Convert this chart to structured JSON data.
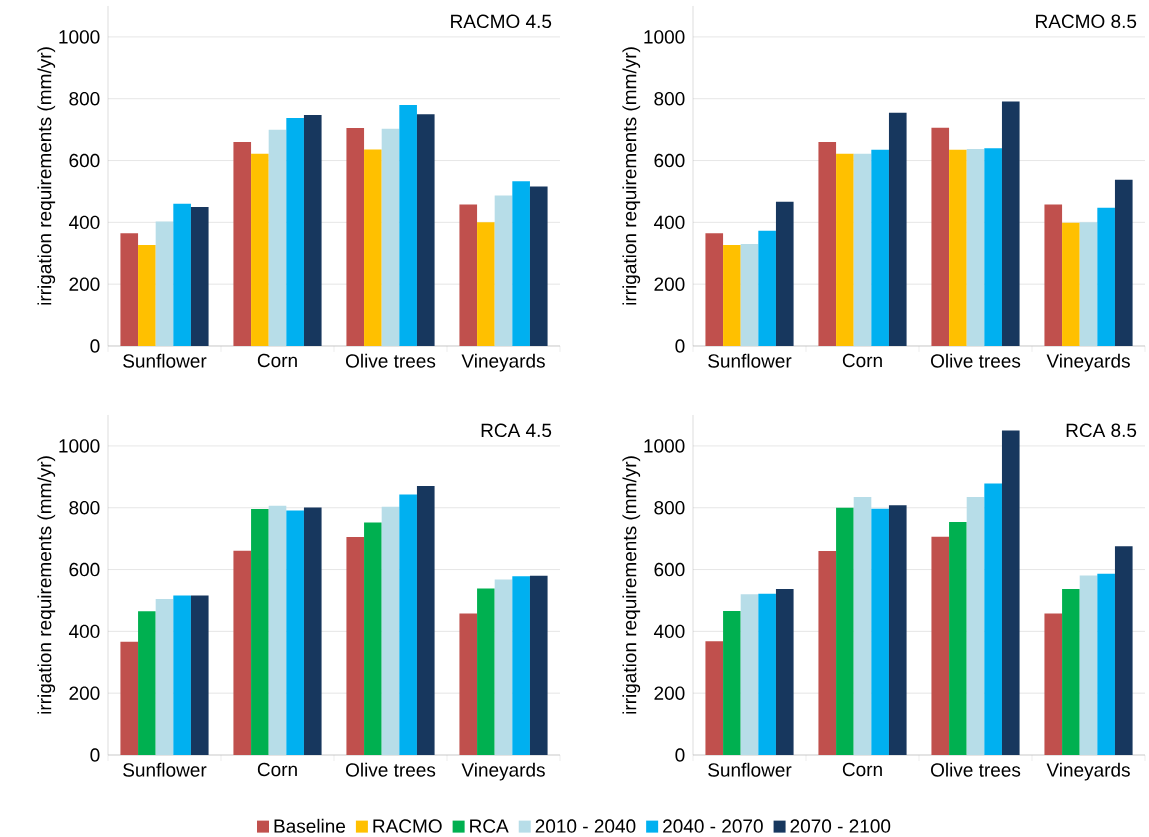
{
  "chart_data": [
    {
      "type": "bar",
      "title": "RACMO 4.5",
      "ylabel": "irrigation requirements (mm/yr)",
      "categories": [
        "Sunflower",
        "Corn",
        "Olive trees",
        "Vineyards"
      ],
      "ylim": [
        0,
        1100
      ],
      "yticks": [
        0,
        200,
        400,
        600,
        800,
        1000
      ],
      "grid": "y",
      "legend": "bottom",
      "series": [
        {
          "name": "Baseline",
          "color": "#c0504d",
          "values": [
            365,
            660,
            705,
            458
          ]
        },
        {
          "name": "RACMO",
          "color": "#ffc000",
          "values": [
            327,
            622,
            636,
            400
          ]
        },
        {
          "name": "2010 - 2040",
          "color": "#b7dde8",
          "values": [
            403,
            700,
            703,
            487
          ]
        },
        {
          "name": "2040 - 2070",
          "color": "#00b0f0",
          "values": [
            460,
            738,
            780,
            533
          ]
        },
        {
          "name": "2070 - 2100",
          "color": "#17375e",
          "values": [
            450,
            747,
            750,
            516
          ]
        }
      ]
    },
    {
      "type": "bar",
      "title": "RACMO 8.5",
      "ylabel": "irrigation requirements (mm/yr)",
      "categories": [
        "Sunflower",
        "Corn",
        "Olive trees",
        "Vineyards"
      ],
      "ylim": [
        0,
        1100
      ],
      "yticks": [
        0,
        200,
        400,
        600,
        800,
        1000
      ],
      "grid": "y",
      "series": [
        {
          "color": "#c0504d",
          "values": [
            365,
            660,
            706,
            458
          ]
        },
        {
          "color": "#ffc000",
          "values": [
            327,
            622,
            635,
            399
          ]
        },
        {
          "color": "#b7dde8",
          "values": [
            330,
            622,
            637,
            400
          ]
        },
        {
          "color": "#00b0f0",
          "values": [
            373,
            635,
            640,
            447
          ]
        },
        {
          "color": "#17375e",
          "values": [
            467,
            755,
            791,
            538
          ]
        }
      ]
    },
    {
      "type": "bar",
      "title": "RCA 4.5",
      "ylabel": "irrigation requirements (mm/yr)",
      "categories": [
        "Sunflower",
        "Corn",
        "Olive trees",
        "Vineyards"
      ],
      "ylim": [
        0,
        1100
      ],
      "yticks": [
        0,
        200,
        400,
        600,
        800,
        1000
      ],
      "grid": "y",
      "legend": "bottom",
      "series": [
        {
          "color": "#c0504d",
          "values": [
            366,
            661,
            705,
            458
          ]
        },
        {
          "name": "RCA",
          "color": "#00b050",
          "values": [
            465,
            796,
            752,
            539
          ]
        },
        {
          "color": "#b7dde8",
          "values": [
            505,
            806,
            803,
            568
          ]
        },
        {
          "color": "#00b0f0",
          "values": [
            516,
            791,
            843,
            578
          ]
        },
        {
          "color": "#17375e",
          "values": [
            516,
            801,
            870,
            580
          ]
        }
      ]
    },
    {
      "type": "bar",
      "title": "RCA 8.5",
      "ylabel": "irrigation requirements (mm/yr)",
      "categories": [
        "Sunflower",
        "Corn",
        "Olive trees",
        "Vineyards"
      ],
      "ylim": [
        0,
        1100
      ],
      "yticks": [
        0,
        200,
        400,
        600,
        800,
        1000
      ],
      "grid": "y",
      "series": [
        {
          "color": "#c0504d",
          "values": [
            368,
            660,
            706,
            458
          ]
        },
        {
          "color": "#00b050",
          "values": [
            466,
            800,
            754,
            537
          ]
        },
        {
          "color": "#b7dde8",
          "values": [
            520,
            835,
            835,
            581
          ]
        },
        {
          "color": "#00b0f0",
          "values": [
            522,
            797,
            878,
            586
          ]
        },
        {
          "color": "#17375e",
          "values": [
            537,
            808,
            1050,
            675
          ]
        }
      ]
    }
  ]
}
